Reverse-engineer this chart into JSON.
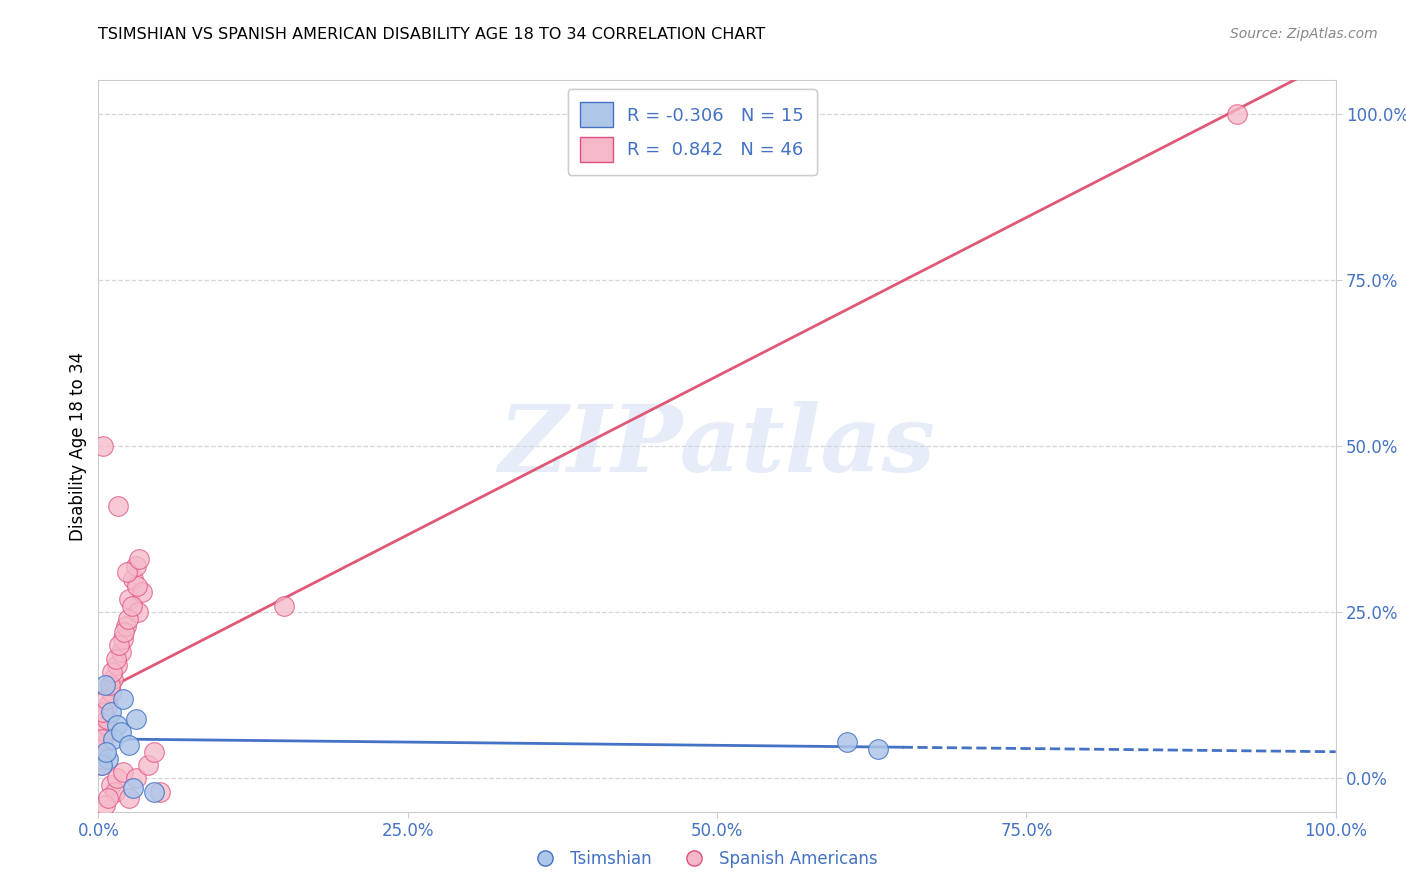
{
  "title": "TSIMSHIAN VS SPANISH AMERICAN DISABILITY AGE 18 TO 34 CORRELATION CHART",
  "source": "Source: ZipAtlas.com",
  "ylabel": "Disability Age 18 to 34",
  "xlim": [
    0,
    100
  ],
  "ylim": [
    -5,
    105
  ],
  "xticks": [
    0,
    25,
    50,
    75,
    100
  ],
  "xticklabels": [
    "0.0%",
    "25.0%",
    "50.0%",
    "75.0%",
    "100.0%"
  ],
  "ytick_positions": [
    0,
    25,
    50,
    75,
    100
  ],
  "ytick_labels": [
    "0.0%",
    "25.0%",
    "50.0%",
    "75.0%",
    "100.0%"
  ],
  "tsimshian_face_color": "#aec6e8",
  "tsimshian_edge_color": "#4472c4",
  "spanish_face_color": "#f5b8c8",
  "spanish_edge_color": "#e05080",
  "tsimshian_line_color": "#4472c4",
  "spanish_line_color": "#e05878",
  "tsimshian_R": -0.306,
  "tsimshian_N": 15,
  "spanish_R": 0.842,
  "spanish_N": 46,
  "watermark_text": "ZIPatlas",
  "tsimshian_x": [
    0.5,
    1.0,
    1.5,
    2.0,
    0.8,
    1.2,
    0.3,
    0.6,
    1.8,
    2.5,
    3.0,
    4.5,
    60.5,
    63.0,
    2.8
  ],
  "tsimshian_y": [
    14.0,
    10.0,
    8.0,
    12.0,
    3.0,
    6.0,
    2.0,
    4.0,
    7.0,
    5.0,
    9.0,
    -2.0,
    5.5,
    4.5,
    -1.5
  ],
  "spanish_x": [
    0.2,
    0.3,
    0.4,
    0.5,
    0.6,
    0.7,
    0.8,
    1.0,
    1.0,
    1.2,
    1.3,
    1.5,
    1.5,
    1.8,
    2.0,
    2.0,
    2.2,
    2.5,
    2.5,
    2.8,
    3.0,
    3.0,
    3.2,
    3.5,
    4.0,
    4.5,
    5.0,
    0.4,
    0.6,
    0.9,
    1.1,
    1.4,
    1.7,
    2.1,
    2.4,
    2.7,
    3.1,
    0.3,
    0.5,
    0.8,
    1.6,
    2.3,
    3.3,
    15.0,
    92.0,
    0.4
  ],
  "spanish_y": [
    2.0,
    3.0,
    5.0,
    7.0,
    8.0,
    9.0,
    11.0,
    13.0,
    -1.0,
    15.0,
    -2.0,
    17.0,
    0.0,
    19.0,
    21.0,
    1.0,
    23.0,
    27.0,
    -3.0,
    30.0,
    32.0,
    0.0,
    25.0,
    28.0,
    2.0,
    4.0,
    -2.0,
    10.0,
    12.0,
    14.0,
    16.0,
    18.0,
    20.0,
    22.0,
    24.0,
    26.0,
    29.0,
    6.0,
    -4.0,
    -3.0,
    41.0,
    31.0,
    33.0,
    26.0,
    100.0,
    50.0
  ]
}
